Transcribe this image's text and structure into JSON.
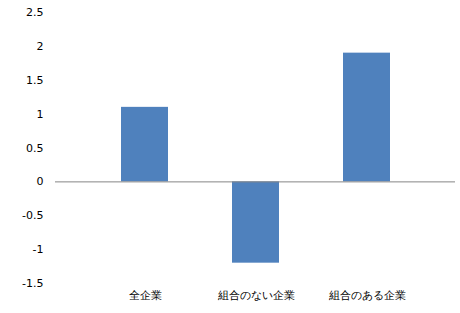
{
  "chart_data": {
    "type": "bar",
    "categories": [
      "全企業",
      "組合のない企業",
      "組合のある企業"
    ],
    "values": [
      1.1,
      -1.2,
      1.9
    ],
    "color": "#4f81bd",
    "ylim": [
      -1.5,
      2.5
    ],
    "yticks": [
      -1.5,
      -1,
      -0.5,
      0,
      0.5,
      1,
      1.5,
      2,
      2.5
    ],
    "grid": false
  }
}
